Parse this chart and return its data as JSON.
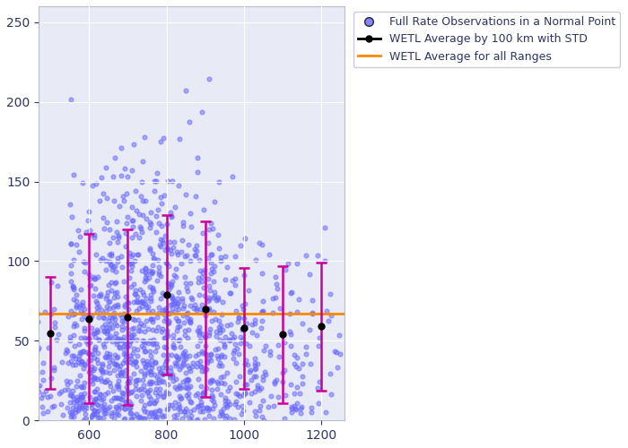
{
  "scatter_color": "#6666ff",
  "scatter_alpha": 0.5,
  "scatter_size": 12,
  "avg_line_color": "#000000",
  "avg_marker": "o",
  "avg_marker_size": 5,
  "errorbar_color": "#cc0099",
  "overall_avg_color": "#ff8800",
  "overall_avg_value": 67.0,
  "xlim": [
    470,
    1260
  ],
  "ylim": [
    0,
    260
  ],
  "xticks": [
    600,
    800,
    1000,
    1200
  ],
  "yticks": [
    0,
    50,
    100,
    150,
    200,
    250
  ],
  "bg_color": "#e8eaf6",
  "grid_color": "#ffffff",
  "legend_labels": [
    "Full Rate Observations in a Normal Point",
    "WETL Average by 100 km with STD",
    "WETL Average for all Ranges"
  ],
  "bin_centers": [
    500,
    600,
    700,
    800,
    900,
    1000,
    1100,
    1200
  ],
  "bin_means": [
    55,
    64,
    65,
    79,
    70,
    58,
    54,
    59
  ],
  "bin_stds": [
    35,
    53,
    55,
    50,
    55,
    38,
    43,
    40
  ],
  "random_seed": 42
}
